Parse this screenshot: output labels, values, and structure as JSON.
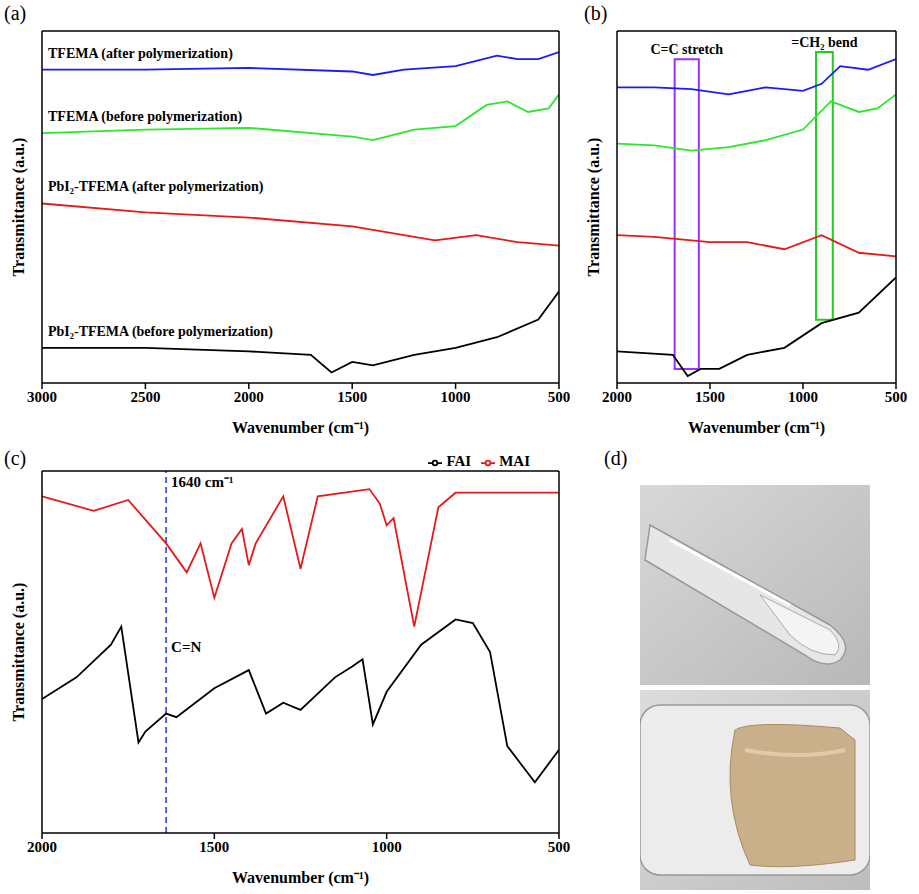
{
  "chart_data": [
    {
      "panel": "(a)",
      "type": "line",
      "x_label": "Wavenumber (cm⁻¹)",
      "y_label": "Transmittance (a.u.)",
      "xlim": [
        3000,
        500
      ],
      "xticks": [
        3000,
        2500,
        2000,
        1500,
        1000,
        500
      ],
      "ylim": [
        0,
        100
      ],
      "tick_labels": "x",
      "grid": false,
      "series": [
        {
          "name": "TFEMA (after polymerization)",
          "color": "#1a1aff",
          "x": [
            3000,
            2500,
            2000,
            1500,
            1400,
            1250,
            1000,
            800,
            700,
            600,
            500
          ],
          "values": [
            89,
            89,
            89.5,
            88.5,
            87.5,
            89,
            90,
            93,
            92,
            92,
            94
          ]
        },
        {
          "name": "TFEMA (before polymerization)",
          "color": "#2ee62e",
          "x": [
            3000,
            2500,
            2000,
            1500,
            1400,
            1200,
            1000,
            850,
            750,
            650,
            550,
            500
          ],
          "values": [
            71,
            72,
            72.5,
            70,
            69,
            72,
            73,
            79,
            80,
            77,
            78,
            82
          ]
        },
        {
          "name": "PbI₂-TFEMA (after polymerization)",
          "color": "#e61919",
          "x": [
            3000,
            2500,
            2000,
            1500,
            1100,
            900,
            700,
            500
          ],
          "values": [
            51,
            48.5,
            47,
            44.5,
            40.5,
            42,
            40,
            39
          ]
        },
        {
          "name": "PbI₂-TFEMA (before polymerization)",
          "color": "#000000",
          "x": [
            3000,
            2500,
            2000,
            1700,
            1600,
            1500,
            1400,
            1200,
            1000,
            800,
            600,
            500
          ],
          "values": [
            10,
            10,
            9,
            8,
            3,
            6,
            5,
            8,
            10,
            13,
            18,
            26
          ]
        }
      ]
    },
    {
      "panel": "(b)",
      "type": "line",
      "x_label": "Wavenumber (cm⁻¹)",
      "y_label": "Transmittance (a.u.)",
      "xlim": [
        2000,
        500
      ],
      "xticks": [
        2000,
        1500,
        1000,
        500
      ],
      "ylim": [
        0,
        100
      ],
      "tick_labels": "x",
      "grid": false,
      "boxes": [
        {
          "label": "C=C stretch",
          "color": "#9b30ff",
          "x": [
            1560,
            1690
          ],
          "y": [
            4,
            92
          ]
        },
        {
          "label": "=CH₂ bend",
          "color": "#22cc22",
          "x": [
            840,
            930
          ],
          "y": [
            18,
            94
          ]
        }
      ],
      "series": [
        {
          "color": "#1a1aff",
          "x": [
            2000,
            1800,
            1600,
            1400,
            1300,
            1200,
            1000,
            900,
            800,
            650,
            500
          ],
          "values": [
            84,
            84,
            83.5,
            82,
            83,
            84,
            83,
            85,
            90,
            89,
            92
          ]
        },
        {
          "color": "#2ee62e",
          "x": [
            2000,
            1800,
            1600,
            1400,
            1200,
            1000,
            850,
            700,
            600,
            500
          ],
          "values": [
            68,
            67.5,
            66,
            67,
            69,
            72,
            80,
            77,
            78,
            82
          ]
        },
        {
          "color": "#e61919",
          "x": [
            2000,
            1800,
            1500,
            1300,
            1100,
            900,
            700,
            500
          ],
          "values": [
            42,
            41.5,
            40,
            40,
            38,
            42,
            37,
            36
          ]
        },
        {
          "color": "#000000",
          "x": [
            2000,
            1700,
            1620,
            1550,
            1450,
            1300,
            1100,
            900,
            700,
            500
          ],
          "values": [
            9,
            8,
            2,
            4,
            4,
            8,
            10,
            17,
            20,
            30
          ]
        }
      ]
    },
    {
      "panel": "(c)",
      "type": "line",
      "x_label": "Wavenumber (cm⁻¹)",
      "y_label": "Transmittance (a.u.)",
      "xlim": [
        2000,
        500
      ],
      "xticks": [
        2000,
        1500,
        1000,
        500
      ],
      "ylim": [
        0,
        100
      ],
      "tick_labels": "x",
      "grid": false,
      "legend": "top right",
      "ref_lines": [
        {
          "x": 1640,
          "color": "#2233cc",
          "line_style": "dashed",
          "labels": [
            "1640 cm⁻¹",
            "C=N"
          ]
        }
      ],
      "series": [
        {
          "name": "MAI",
          "color": "#e61919",
          "x": [
            2000,
            1850,
            1750,
            1640,
            1580,
            1540,
            1500,
            1450,
            1420,
            1400,
            1380,
            1300,
            1250,
            1200,
            1050,
            1020,
            1000,
            980,
            920,
            850,
            800,
            500
          ],
          "values": [
            93,
            89,
            92,
            80,
            72,
            80,
            65,
            80,
            84,
            74,
            80,
            93,
            73,
            93,
            95,
            91,
            85,
            87,
            57,
            90,
            94,
            94
          ]
        },
        {
          "name": "FAI",
          "color": "#000000",
          "x": [
            2000,
            1900,
            1800,
            1770,
            1720,
            1700,
            1640,
            1610,
            1500,
            1400,
            1350,
            1300,
            1250,
            1150,
            1100,
            1070,
            1040,
            1000,
            900,
            800,
            750,
            700,
            650,
            570,
            500
          ],
          "values": [
            37,
            43,
            52,
            57,
            25,
            28,
            33,
            32,
            40,
            45,
            33,
            36,
            34,
            43,
            46,
            48,
            30,
            39,
            52,
            59,
            58,
            50,
            24,
            14,
            23
          ]
        }
      ]
    }
  ],
  "photos": {
    "panel": "(d)"
  }
}
